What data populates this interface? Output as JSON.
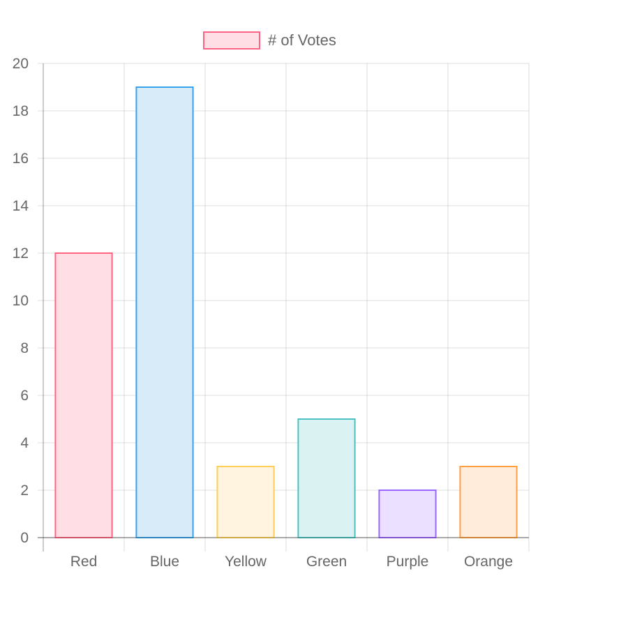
{
  "chart_data": {
    "type": "bar",
    "categories": [
      "Red",
      "Blue",
      "Yellow",
      "Green",
      "Purple",
      "Orange"
    ],
    "series": [
      {
        "name": "# of Votes",
        "values": [
          12,
          19,
          3,
          5,
          2,
          3
        ]
      }
    ],
    "bar_colors": [
      {
        "fill": "#ffdfe5",
        "stroke": "#ff6384"
      },
      {
        "fill": "#d8ebf9",
        "stroke": "#36a2eb"
      },
      {
        "fill": "#fff4e0",
        "stroke": "#ffce56"
      },
      {
        "fill": "#dbf2f2",
        "stroke": "#4bc0c0"
      },
      {
        "fill": "#ebe0ff",
        "stroke": "#9966ff"
      },
      {
        "fill": "#ffecdb",
        "stroke": "#ff9f40"
      }
    ],
    "legend": {
      "label": "# of Votes",
      "fill": "#ffdfe5",
      "stroke": "#ff6384",
      "position": "top"
    },
    "ylim": [
      0,
      20
    ],
    "yticks": [
      0,
      2,
      4,
      6,
      8,
      10,
      12,
      14,
      16,
      18,
      20
    ],
    "grid": true,
    "title": "",
    "xlabel": "",
    "ylabel": ""
  }
}
